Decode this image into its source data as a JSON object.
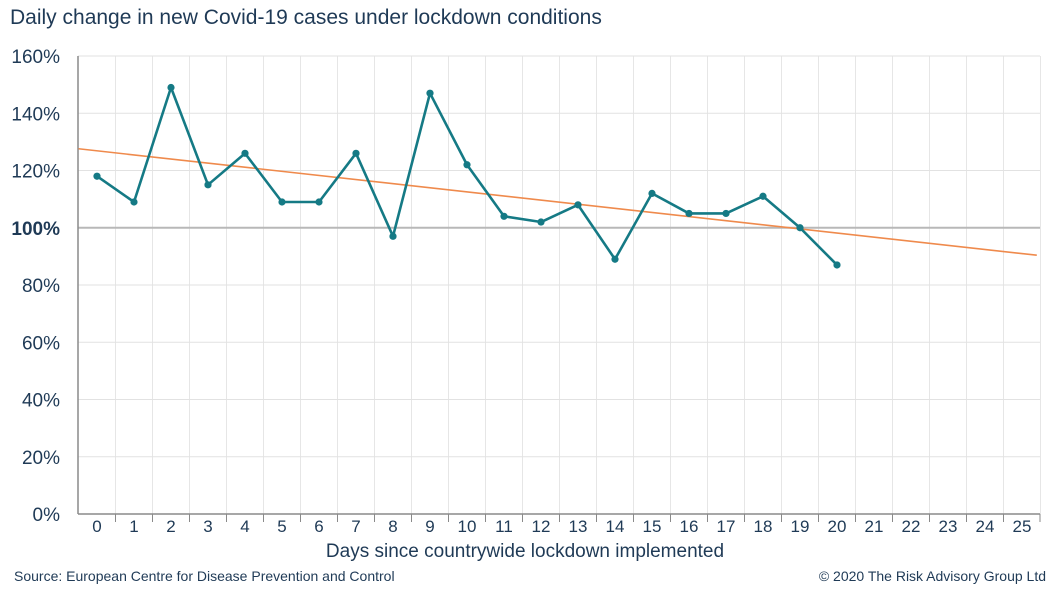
{
  "chart_data": {
    "type": "line",
    "title": "Daily change in new Covid-19 cases under lockdown conditions",
    "xlabel": "Days since countrywide lockdown implemented",
    "ylabel": "",
    "x": [
      0,
      1,
      2,
      3,
      4,
      5,
      6,
      7,
      8,
      9,
      10,
      11,
      12,
      13,
      14,
      15,
      16,
      17,
      18,
      19,
      20,
      21,
      22,
      23,
      24,
      25
    ],
    "xlim": [
      0,
      25
    ],
    "ylim": [
      0,
      160
    ],
    "y_ticks": [
      "0%",
      "20%",
      "40%",
      "60%",
      "80%",
      "100%",
      "120%",
      "140%",
      "160%"
    ],
    "y_tick_values": [
      0,
      20,
      40,
      60,
      80,
      100,
      120,
      140,
      160
    ],
    "reference_line": 100,
    "grid": true,
    "series": [
      {
        "type": "line",
        "color": "#157a85",
        "x": [
          0,
          1,
          2,
          3,
          4,
          5,
          6,
          7,
          8,
          9,
          10,
          11,
          12,
          13,
          14,
          15,
          16,
          17,
          18,
          19,
          20
        ],
        "values": [
          118,
          109,
          149,
          115,
          126,
          109,
          109,
          126,
          97,
          147,
          122,
          104,
          102,
          108,
          89,
          112,
          105,
          105,
          111,
          100,
          87
        ]
      },
      {
        "type": "trend",
        "color": "#ef8a4c",
        "x": [
          -0.5,
          25.4
        ],
        "values": [
          127.6,
          90.4
        ]
      }
    ]
  },
  "source": "Source: European Centre for Disease Prevention and Control",
  "copyright": "© 2020 The Risk Advisory Group Ltd"
}
